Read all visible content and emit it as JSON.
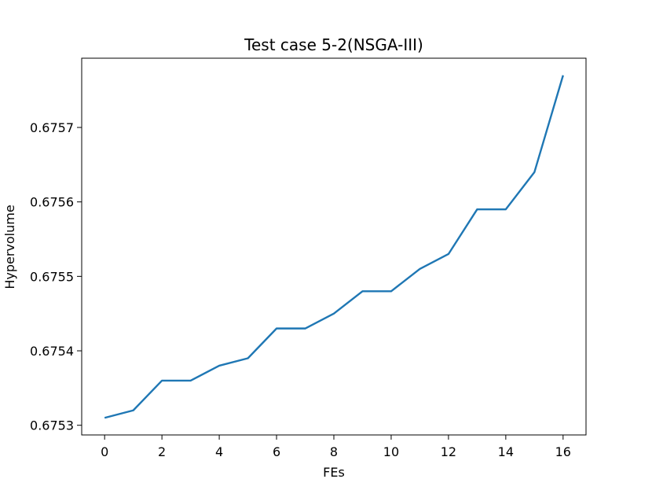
{
  "chart_data": {
    "type": "line",
    "title": "Test case 5-2(NSGA-III)",
    "xlabel": "FEs",
    "ylabel": "Hypervolume",
    "x": [
      0,
      1,
      2,
      3,
      4,
      5,
      6,
      7,
      8,
      9,
      10,
      11,
      12,
      13,
      14,
      15,
      16
    ],
    "series": [
      {
        "values": [
          0.67531,
          0.67532,
          0.67536,
          0.67536,
          0.67538,
          0.67539,
          0.67543,
          0.67543,
          0.67545,
          0.67548,
          0.67548,
          0.67551,
          0.67553,
          0.67559,
          0.67559,
          0.67564,
          0.67577
        ],
        "color": "#1f77b4"
      }
    ],
    "xlim": [
      -0.8,
      16.8
    ],
    "ylim": [
      0.675287,
      0.675793
    ],
    "xticks": [
      0,
      2,
      4,
      6,
      8,
      10,
      12,
      14,
      16
    ],
    "yticks": [
      0.6753,
      0.6754,
      0.6755,
      0.6756,
      0.6757
    ],
    "xtick_labels": [
      "0",
      "2",
      "4",
      "6",
      "8",
      "10",
      "12",
      "14",
      "16"
    ],
    "ytick_labels": [
      "0.6753",
      "0.6754",
      "0.6755",
      "0.6756",
      "0.6757"
    ],
    "grid": false,
    "legend": "none"
  }
}
